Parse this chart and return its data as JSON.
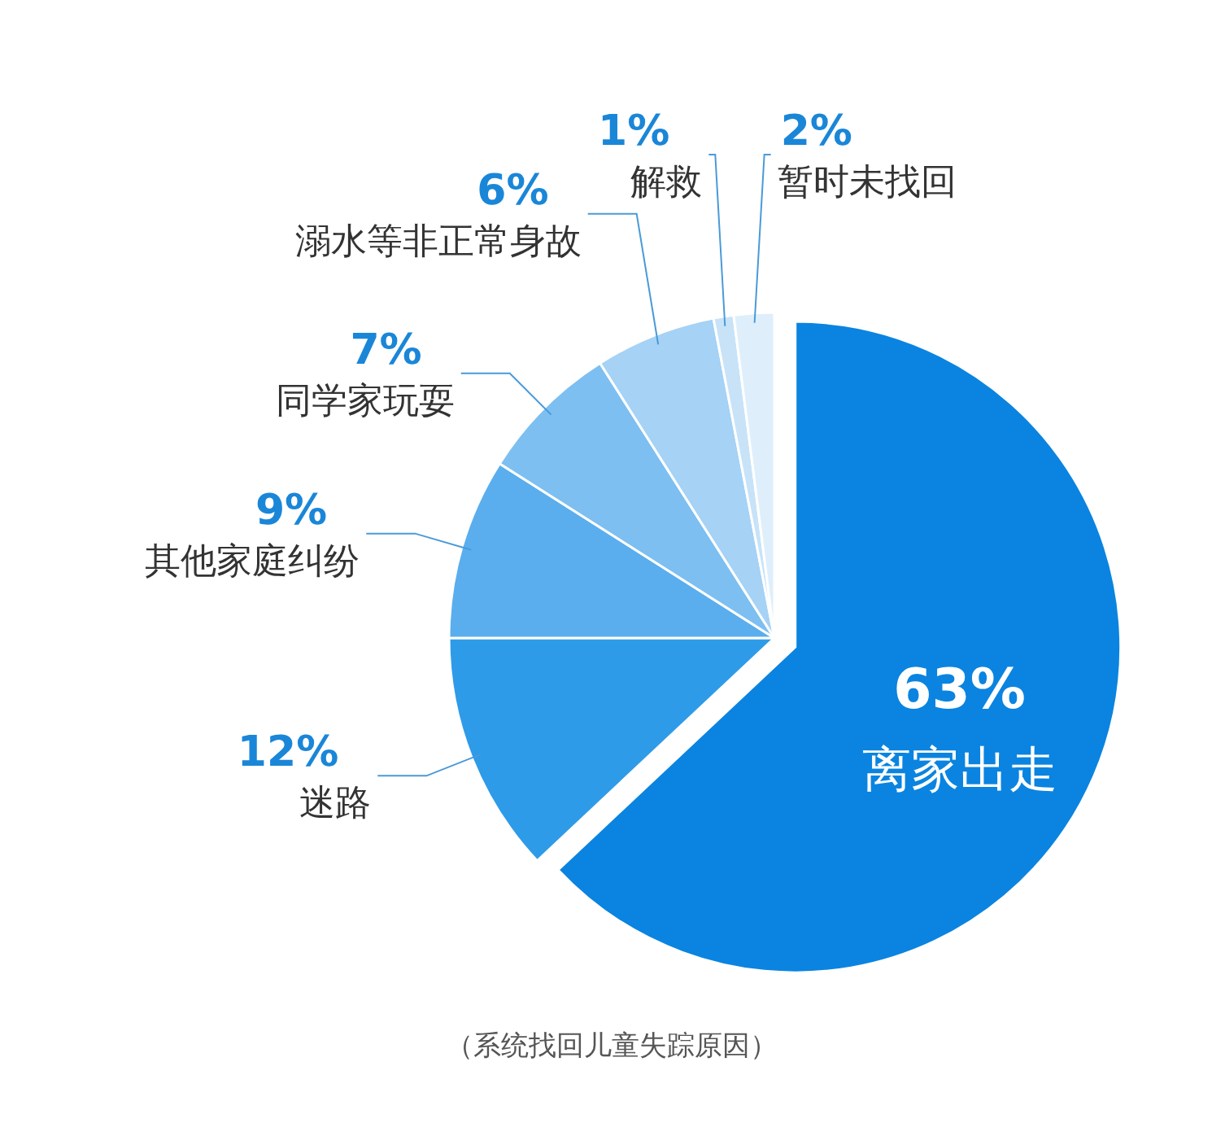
{
  "chart_data": {
    "type": "pie",
    "categories": [
      "离家出走",
      "迷路",
      "其他家庭纠纷",
      "同学家玩耍",
      "溺水等非正常身故",
      "解救",
      "暂时未找回"
    ],
    "values": [
      63,
      12,
      9,
      7,
      6,
      1,
      2
    ],
    "colors": [
      "#0a84e0",
      "#2e9be8",
      "#5aaeed",
      "#7dbff0",
      "#a5d2f5",
      "#c8e3f8",
      "#deeffb"
    ],
    "value_labels": [
      "63%",
      "12%",
      "9%",
      "7%",
      "6%",
      "1%",
      "2%"
    ],
    "annotations": [
      "（系统找回儿童失踪原因）"
    ]
  }
}
